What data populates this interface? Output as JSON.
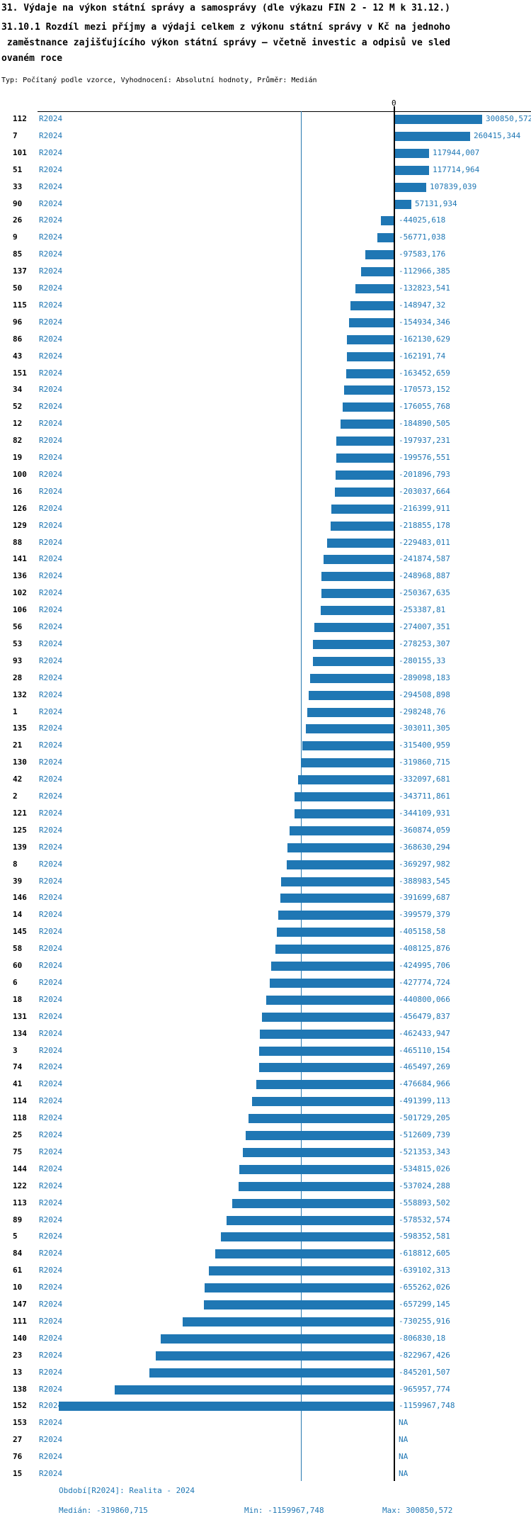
{
  "title": "31. Výdaje na výkon státní správy a samosprávy (dle výkazu FIN 2 - 12 M k 31.12.)",
  "subtitle_lines": [
    "31.10.1 Rozdíl mezi příjmy a výdaji celkem z výkonu státní správy v Kč na jednoho",
    " zaměstnance zajišťujícího výkon státní správy – včetně investic a odpisů ve sled",
    "ovaném roce"
  ],
  "meta_line": "Typ: Počítaný podle vzorce, Vyhodnocení: Absolutní hodnoty, Průměr: Medián",
  "colors": {
    "bar": "#1f77b4",
    "blue_text": "#1f77b4",
    "median_line": "#2878af",
    "axis": "#000000"
  },
  "chart_data": {
    "type": "bar",
    "orientation": "horizontal",
    "zero_tick_label": "0",
    "na_label": "NA",
    "period_label": "R2024",
    "median": -319860.715,
    "value_range": [
      -1159967.748,
      300850.572
    ],
    "rows": [
      {
        "id": "112",
        "value": 300850.572,
        "label": "300850,572"
      },
      {
        "id": "7",
        "value": 260415.344,
        "label": "260415,344"
      },
      {
        "id": "101",
        "value": 117944.007,
        "label": "117944,007"
      },
      {
        "id": "51",
        "value": 117714.964,
        "label": "117714,964"
      },
      {
        "id": "33",
        "value": 107839.039,
        "label": "107839,039"
      },
      {
        "id": "90",
        "value": 57131.934,
        "label": "57131,934"
      },
      {
        "id": "26",
        "value": -44025.618,
        "label": "-44025,618"
      },
      {
        "id": "9",
        "value": -56771.038,
        "label": "-56771,038"
      },
      {
        "id": "85",
        "value": -97583.176,
        "label": "-97583,176"
      },
      {
        "id": "137",
        "value": -112966.385,
        "label": "-112966,385"
      },
      {
        "id": "50",
        "value": -132823.541,
        "label": "-132823,541"
      },
      {
        "id": "115",
        "value": -148947.32,
        "label": "-148947,32"
      },
      {
        "id": "96",
        "value": -154934.346,
        "label": "-154934,346"
      },
      {
        "id": "86",
        "value": -162130.629,
        "label": "-162130,629"
      },
      {
        "id": "43",
        "value": -162191.74,
        "label": "-162191,74"
      },
      {
        "id": "151",
        "value": -163452.659,
        "label": "-163452,659"
      },
      {
        "id": "34",
        "value": -170573.152,
        "label": "-170573,152"
      },
      {
        "id": "52",
        "value": -176055.768,
        "label": "-176055,768"
      },
      {
        "id": "12",
        "value": -184890.505,
        "label": "-184890,505"
      },
      {
        "id": "82",
        "value": -197937.231,
        "label": "-197937,231"
      },
      {
        "id": "19",
        "value": -199576.551,
        "label": "-199576,551"
      },
      {
        "id": "100",
        "value": -201896.793,
        "label": "-201896,793"
      },
      {
        "id": "16",
        "value": -203037.664,
        "label": "-203037,664"
      },
      {
        "id": "126",
        "value": -216399.911,
        "label": "-216399,911"
      },
      {
        "id": "129",
        "value": -218855.178,
        "label": "-218855,178"
      },
      {
        "id": "88",
        "value": -229483.011,
        "label": "-229483,011"
      },
      {
        "id": "141",
        "value": -241874.587,
        "label": "-241874,587"
      },
      {
        "id": "136",
        "value": -248968.887,
        "label": "-248968,887"
      },
      {
        "id": "102",
        "value": -250367.635,
        "label": "-250367,635"
      },
      {
        "id": "106",
        "value": -253387.81,
        "label": "-253387,81"
      },
      {
        "id": "56",
        "value": -274007.351,
        "label": "-274007,351"
      },
      {
        "id": "53",
        "value": -278253.307,
        "label": "-278253,307"
      },
      {
        "id": "93",
        "value": -280155.33,
        "label": "-280155,33"
      },
      {
        "id": "28",
        "value": -289098.183,
        "label": "-289098,183"
      },
      {
        "id": "132",
        "value": -294508.898,
        "label": "-294508,898"
      },
      {
        "id": "1",
        "value": -298248.76,
        "label": "-298248,76"
      },
      {
        "id": "135",
        "value": -303011.305,
        "label": "-303011,305"
      },
      {
        "id": "21",
        "value": -315400.959,
        "label": "-315400,959"
      },
      {
        "id": "130",
        "value": -319860.715,
        "label": "-319860,715"
      },
      {
        "id": "42",
        "value": -332097.681,
        "label": "-332097,681"
      },
      {
        "id": "2",
        "value": -343711.861,
        "label": "-343711,861"
      },
      {
        "id": "121",
        "value": -344109.931,
        "label": "-344109,931"
      },
      {
        "id": "125",
        "value": -360874.059,
        "label": "-360874,059"
      },
      {
        "id": "139",
        "value": -368630.294,
        "label": "-368630,294"
      },
      {
        "id": "8",
        "value": -369297.982,
        "label": "-369297,982"
      },
      {
        "id": "39",
        "value": -388983.545,
        "label": "-388983,545"
      },
      {
        "id": "146",
        "value": -391699.687,
        "label": "-391699,687"
      },
      {
        "id": "14",
        "value": -399579.379,
        "label": "-399579,379"
      },
      {
        "id": "145",
        "value": -405158.58,
        "label": "-405158,58"
      },
      {
        "id": "58",
        "value": -408125.876,
        "label": "-408125,876"
      },
      {
        "id": "60",
        "value": -424995.706,
        "label": "-424995,706"
      },
      {
        "id": "6",
        "value": -427774.724,
        "label": "-427774,724"
      },
      {
        "id": "18",
        "value": -440800.066,
        "label": "-440800,066"
      },
      {
        "id": "131",
        "value": -456479.837,
        "label": "-456479,837"
      },
      {
        "id": "134",
        "value": -462433.947,
        "label": "-462433,947"
      },
      {
        "id": "3",
        "value": -465110.154,
        "label": "-465110,154"
      },
      {
        "id": "74",
        "value": -465497.269,
        "label": "-465497,269"
      },
      {
        "id": "41",
        "value": -476684.966,
        "label": "-476684,966"
      },
      {
        "id": "114",
        "value": -491399.113,
        "label": "-491399,113"
      },
      {
        "id": "118",
        "value": -501729.205,
        "label": "-501729,205"
      },
      {
        "id": "25",
        "value": -512609.739,
        "label": "-512609,739"
      },
      {
        "id": "75",
        "value": -521353.343,
        "label": "-521353,343"
      },
      {
        "id": "144",
        "value": -534815.026,
        "label": "-534815,026"
      },
      {
        "id": "122",
        "value": -537024.288,
        "label": "-537024,288"
      },
      {
        "id": "113",
        "value": -558893.502,
        "label": "-558893,502"
      },
      {
        "id": "89",
        "value": -578532.574,
        "label": "-578532,574"
      },
      {
        "id": "5",
        "value": -598352.581,
        "label": "-598352,581"
      },
      {
        "id": "84",
        "value": -618812.605,
        "label": "-618812,605"
      },
      {
        "id": "61",
        "value": -639102.313,
        "label": "-639102,313"
      },
      {
        "id": "10",
        "value": -655262.026,
        "label": "-655262,026"
      },
      {
        "id": "147",
        "value": -657299.145,
        "label": "-657299,145"
      },
      {
        "id": "111",
        "value": -730255.916,
        "label": "-730255,916"
      },
      {
        "id": "140",
        "value": -806830.18,
        "label": "-806830,18"
      },
      {
        "id": "23",
        "value": -822967.426,
        "label": "-822967,426"
      },
      {
        "id": "13",
        "value": -845201.507,
        "label": "-845201,507"
      },
      {
        "id": "138",
        "value": -965957.774,
        "label": "-965957,774"
      },
      {
        "id": "152",
        "value": -1159967.748,
        "label": "-1159967,748"
      },
      {
        "id": "153",
        "value": null,
        "label": "NA"
      },
      {
        "id": "27",
        "value": null,
        "label": "NA"
      },
      {
        "id": "76",
        "value": null,
        "label": "NA"
      },
      {
        "id": "15",
        "value": null,
        "label": "NA"
      }
    ]
  },
  "footer": {
    "period_line": "Období[R2024]: Realita - 2024",
    "median": "Medián: -319860,715",
    "min": "Min: -1159967,748",
    "max": "Max: 300850,572"
  }
}
